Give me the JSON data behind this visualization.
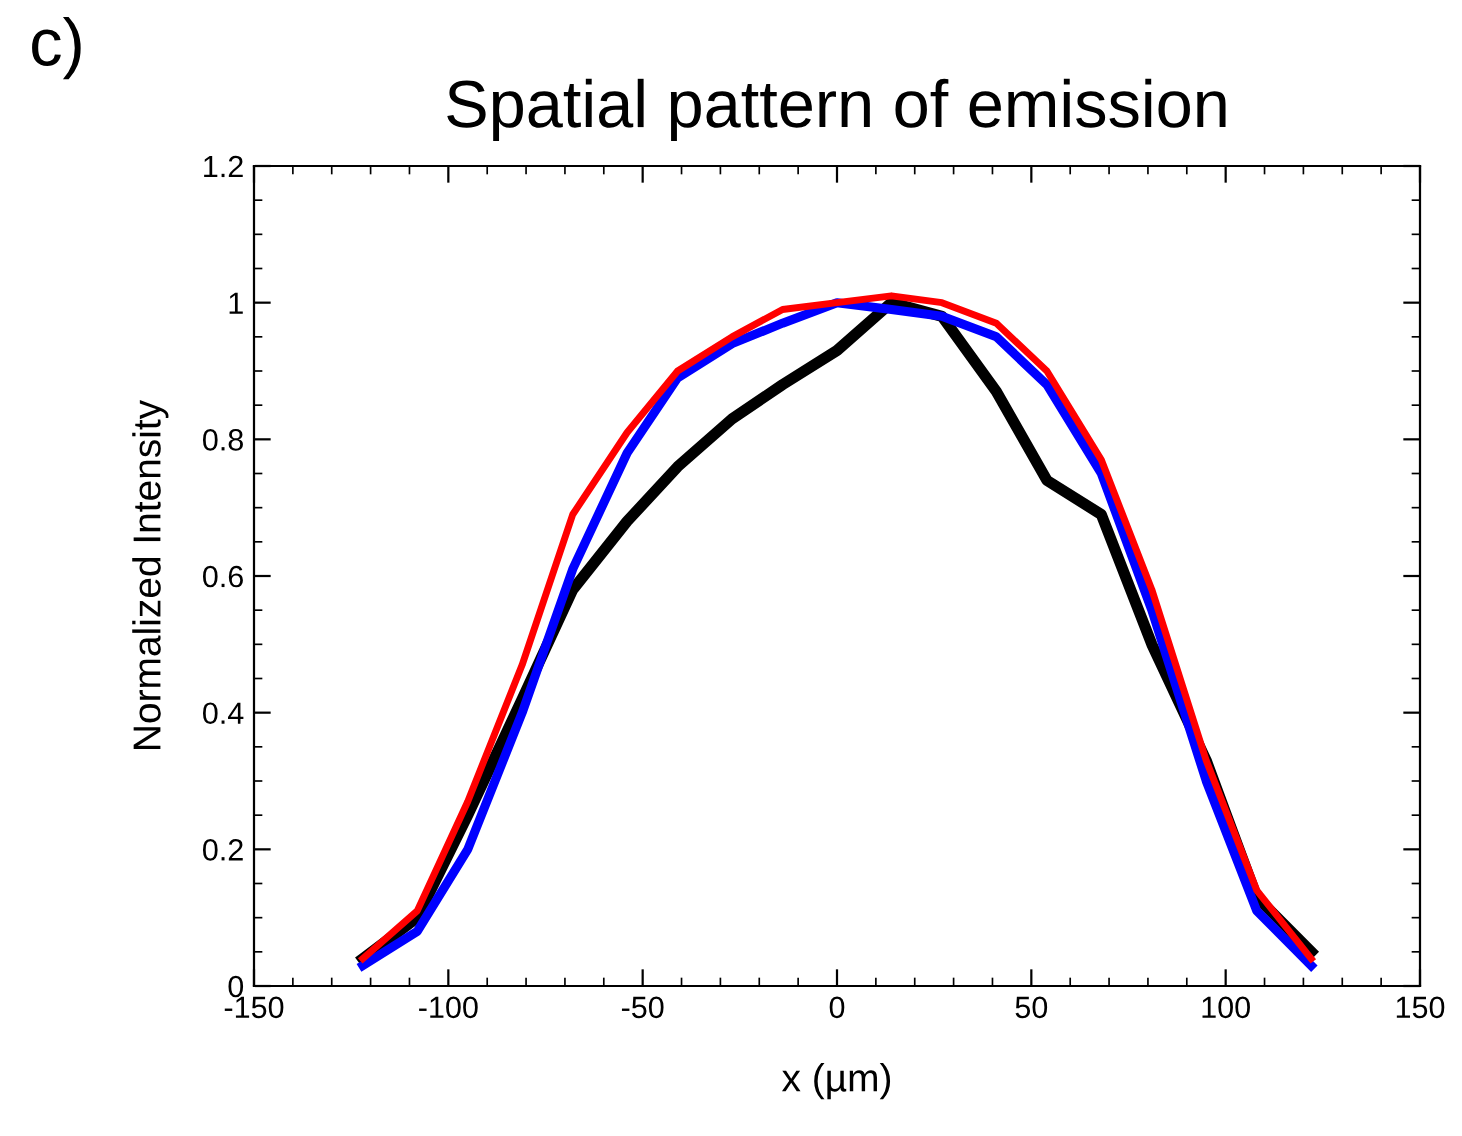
{
  "chart_data": {
    "type": "line",
    "title": "Spatial pattern of emission",
    "xlabel": "x (µm)",
    "ylabel": "Normalized Intensity",
    "annotations": [
      "c)"
    ],
    "x": [
      -122,
      -108,
      -95,
      -81,
      -68,
      -54,
      -41,
      -27,
      -14,
      0,
      14,
      27,
      41,
      54,
      68,
      81,
      95,
      108,
      122
    ],
    "series": [
      {
        "color": "#000000",
        "values": [
          0.04,
          0.1,
          0.25,
          0.42,
          0.58,
          0.68,
          0.76,
          0.83,
          0.88,
          0.93,
          1.0,
          0.98,
          0.87,
          0.74,
          0.69,
          0.5,
          0.33,
          0.13,
          0.05
        ]
      },
      {
        "color": "#0000ff",
        "values": [
          0.03,
          0.08,
          0.2,
          0.4,
          0.61,
          0.78,
          0.89,
          0.94,
          0.97,
          1.0,
          0.99,
          0.98,
          0.95,
          0.88,
          0.75,
          0.55,
          0.3,
          0.11,
          0.03
        ]
      },
      {
        "color": "#ff0000",
        "values": [
          0.04,
          0.11,
          0.27,
          0.47,
          0.69,
          0.81,
          0.9,
          0.95,
          0.99,
          1.0,
          1.01,
          1.0,
          0.97,
          0.9,
          0.77,
          0.58,
          0.33,
          0.14,
          0.04
        ]
      }
    ],
    "xlim": [
      -150,
      150
    ],
    "xticks": [
      -150,
      -100,
      -50,
      0,
      50,
      100,
      150
    ],
    "ylim": [
      0,
      1.2
    ],
    "yticks": [
      0,
      0.2,
      0.4,
      0.6,
      0.8,
      1,
      1.2
    ],
    "grid": false,
    "legend": false,
    "marker": "none",
    "line_style": "solid"
  }
}
